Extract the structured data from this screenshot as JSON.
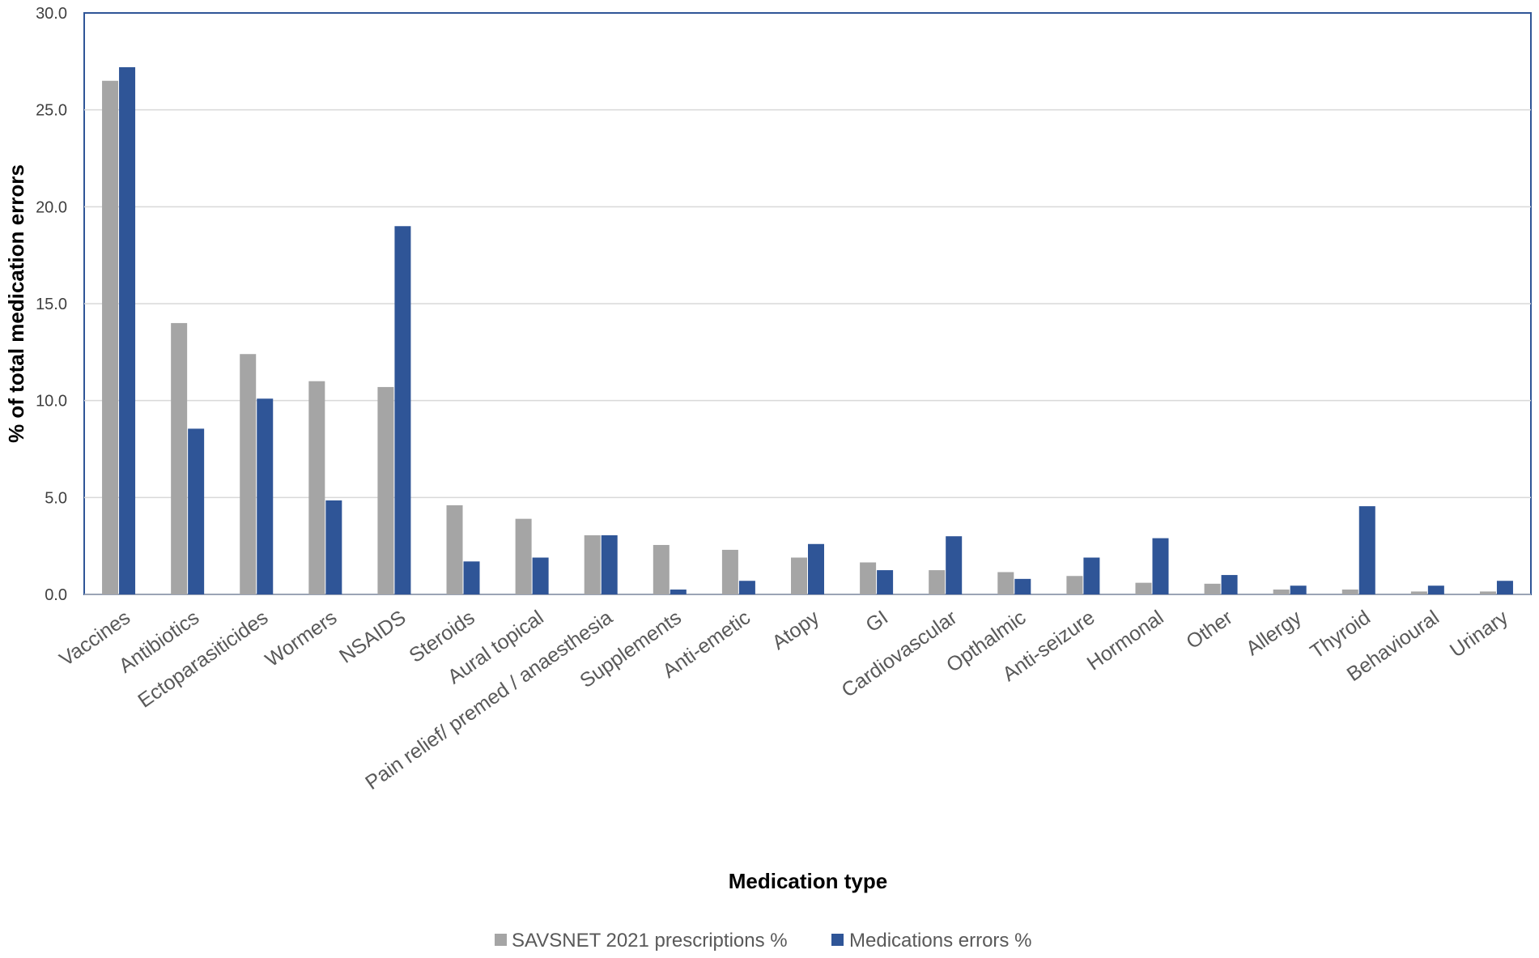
{
  "chart_data": {
    "type": "bar",
    "title": "",
    "xlabel": "Medication type",
    "ylabel": "% of total medication errors",
    "ylim": [
      0,
      30
    ],
    "yticks": [
      "0.0",
      "5.0",
      "10.0",
      "15.0",
      "20.0",
      "25.0",
      "30.0"
    ],
    "grid": true,
    "legend_position": "bottom",
    "categories": [
      "Vaccines",
      "Antibiotics",
      "Ectoparasiticides",
      "Wormers",
      "NSAIDS",
      "Steroids",
      "Aural topical",
      "Pain relief/ premed / anaesthesia",
      "Supplements",
      "Anti-emetic",
      "Atopy",
      "GI",
      "Cardiovascular",
      "Opthalmic",
      "Anti-seizure",
      "Hormonal",
      "Other",
      "Allergy",
      "Thyroid",
      "Behavioural",
      "Urinary"
    ],
    "series": [
      {
        "name": "SAVSNET 2021 prescriptions %",
        "color": "#a5a5a5",
        "values": [
          26.5,
          14.0,
          12.4,
          11.0,
          10.7,
          4.6,
          3.9,
          3.05,
          2.55,
          2.3,
          1.9,
          1.65,
          1.25,
          1.15,
          0.95,
          0.6,
          0.55,
          0.25,
          0.25,
          0.15,
          0.15
        ]
      },
      {
        "name": "Medications errors %",
        "color": "#2f5597",
        "values": [
          27.2,
          8.55,
          10.1,
          4.85,
          19.0,
          1.7,
          1.9,
          3.05,
          0.25,
          0.7,
          2.6,
          1.25,
          3.0,
          0.8,
          1.9,
          2.9,
          1.0,
          0.45,
          4.55,
          0.45,
          0.7
        ]
      }
    ]
  }
}
